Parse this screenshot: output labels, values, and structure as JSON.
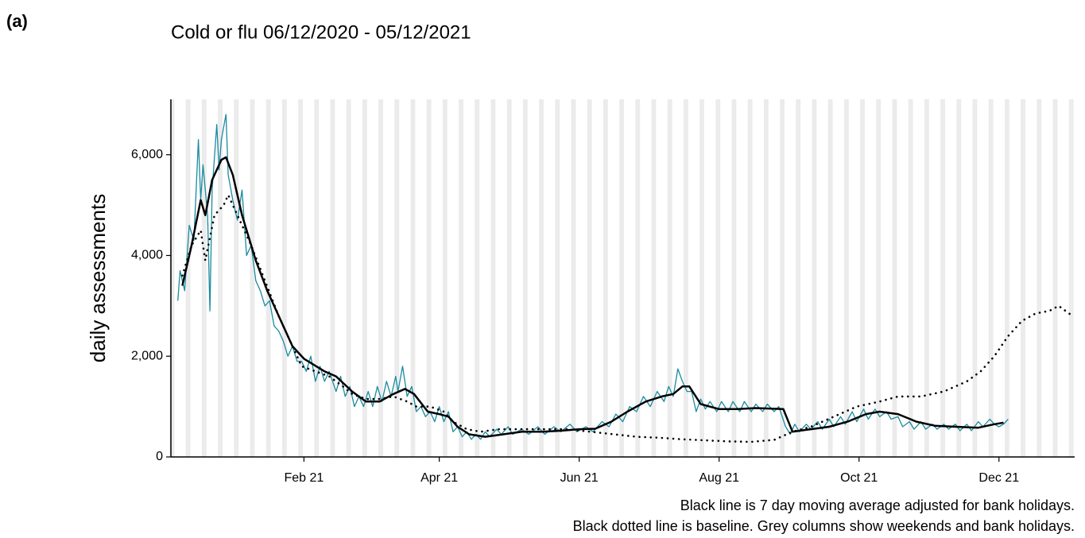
{
  "chart_data": {
    "type": "line",
    "panel_label": "(a)",
    "title": "Cold or flu 06/12/2020 - 05/12/2021",
    "y_label": "daily assessments",
    "notes": [
      "Black line is 7 day moving average adjusted for bank holidays.",
      "Black dotted line is baseline. Grey columns show weekends and bank holidays."
    ],
    "xlim": [
      -27,
      367
    ],
    "xticks": [
      {
        "value": 31,
        "label": "Feb 21"
      },
      {
        "value": 90,
        "label": "Apr 21"
      },
      {
        "value": 151,
        "label": "Jun 21"
      },
      {
        "value": 212,
        "label": "Aug 21"
      },
      {
        "value": 273,
        "label": "Oct 21"
      },
      {
        "value": 334,
        "label": "Dec 21"
      }
    ],
    "ylim": [
      0,
      7100
    ],
    "yticks": [
      0,
      {
        "value": 2000,
        "label": "2,000"
      },
      {
        "value": 4000,
        "label": "4,000"
      },
      {
        "value": 6000,
        "label": "6,000"
      }
    ],
    "weekend_columns": true,
    "series": [
      {
        "color": "#1b8ba0",
        "style": "solid",
        "width": 1.3,
        "x": [
          -24,
          -23,
          -21,
          -19,
          -17,
          -15,
          -14,
          -13,
          -11,
          -10,
          -9,
          -7,
          -6,
          -5,
          -3,
          -2,
          0,
          2,
          4,
          6,
          8,
          10,
          12,
          14,
          16,
          18,
          20,
          22,
          24,
          26,
          28,
          30,
          32,
          34,
          36,
          38,
          40,
          42,
          45,
          47,
          49,
          51,
          53,
          55,
          57,
          59,
          61,
          63,
          65,
          67,
          69,
          71,
          72,
          74,
          76,
          78,
          80,
          82,
          84,
          86,
          88,
          90,
          92,
          94,
          96,
          98,
          100,
          102,
          104,
          106,
          108,
          110,
          112,
          115,
          117,
          120,
          122,
          126,
          129,
          133,
          136,
          140,
          143,
          147,
          150,
          154,
          157,
          161,
          164,
          167,
          170,
          173,
          176,
          179,
          182,
          185,
          188,
          190,
          192,
          194,
          196,
          198,
          200,
          202,
          204,
          206,
          208,
          211,
          213,
          216,
          218,
          221,
          223,
          226,
          228,
          231,
          233,
          236,
          238,
          241,
          243,
          245,
          247,
          250,
          252,
          255,
          257,
          260,
          262,
          265,
          267,
          270,
          272,
          275,
          277,
          280,
          282,
          285,
          287,
          290,
          292,
          295,
          297,
          300,
          302,
          305,
          307,
          310,
          312,
          315,
          317,
          320,
          322,
          325,
          327,
          330,
          332,
          334,
          336,
          338
        ],
        "values": [
          3100,
          3700,
          3300,
          4600,
          4300,
          6300,
          5100,
          5800,
          4800,
          2900,
          5300,
          6600,
          5700,
          6300,
          6800,
          5600,
          5100,
          4700,
          5300,
          4000,
          4200,
          3500,
          3300,
          3000,
          3100,
          2600,
          2500,
          2300,
          2000,
          2200,
          1900,
          1900,
          1700,
          2000,
          1500,
          1800,
          1500,
          1700,
          1300,
          1600,
          1200,
          1400,
          1000,
          1200,
          1000,
          1300,
          1000,
          1400,
          1100,
          1500,
          1200,
          1600,
          1300,
          1800,
          1200,
          1400,
          900,
          1000,
          800,
          900,
          700,
          1000,
          700,
          900,
          500,
          600,
          400,
          500,
          350,
          450,
          350,
          500,
          400,
          550,
          450,
          600,
          450,
          550,
          450,
          600,
          450,
          600,
          500,
          650,
          500,
          600,
          500,
          700,
          600,
          850,
          700,
          1000,
          900,
          1200,
          1000,
          1300,
          1100,
          1400,
          1200,
          1750,
          1500,
          1300,
          1300,
          900,
          1150,
          950,
          1100,
          900,
          1100,
          900,
          1100,
          900,
          1100,
          900,
          1050,
          900,
          1050,
          900,
          1000,
          600,
          450,
          650,
          500,
          650,
          550,
          700,
          550,
          750,
          600,
          800,
          650,
          900,
          700,
          950,
          750,
          950,
          800,
          900,
          750,
          800,
          600,
          700,
          550,
          700,
          550,
          650,
          550,
          650,
          550,
          650,
          520,
          650,
          520,
          700,
          600,
          750,
          650,
          600,
          650,
          750
        ]
      },
      {
        "color": "#000000",
        "style": "solid",
        "width": 2.5,
        "x": [
          -22,
          -18,
          -14,
          -12,
          -9,
          -5,
          -3,
          0,
          4,
          10,
          15,
          21,
          26,
          31,
          40,
          45,
          52,
          58,
          64,
          70,
          75,
          79,
          85,
          90,
          94,
          98,
          103,
          110,
          118,
          126,
          135,
          143,
          151,
          158,
          165,
          172,
          180,
          187,
          192,
          196,
          199,
          204,
          212,
          220,
          228,
          235,
          240,
          244,
          252,
          260,
          268,
          276,
          282,
          290,
          298,
          306,
          315,
          325,
          332,
          336
        ],
        "values": [
          3400,
          4200,
          5100,
          4800,
          5500,
          5900,
          5950,
          5600,
          4800,
          3900,
          3300,
          2700,
          2200,
          1950,
          1700,
          1600,
          1300,
          1100,
          1100,
          1250,
          1350,
          1250,
          900,
          850,
          800,
          600,
          450,
          400,
          450,
          500,
          500,
          520,
          550,
          560,
          700,
          900,
          1100,
          1200,
          1250,
          1400,
          1400,
          1050,
          950,
          950,
          970,
          960,
          950,
          500,
          550,
          600,
          700,
          850,
          900,
          850,
          700,
          620,
          600,
          580,
          650,
          680
        ]
      },
      {
        "color": "#000000",
        "style": "dotted",
        "width": 2.6,
        "x": [
          -22,
          -18,
          -14,
          -12,
          -8,
          -4,
          -2,
          0,
          4,
          8,
          14,
          20,
          26,
          30,
          36,
          42,
          48,
          52,
          58,
          64,
          70,
          76,
          80,
          86,
          92,
          96,
          102,
          108,
          116,
          126,
          136,
          146,
          156,
          166,
          176,
          186,
          196,
          206,
          216,
          226,
          236,
          244,
          252,
          262,
          272,
          282,
          290,
          300,
          310,
          320,
          326,
          332,
          338,
          344,
          350,
          356,
          360,
          363,
          366
        ],
        "values": [
          3600,
          4200,
          4500,
          3900,
          4800,
          5000,
          5200,
          5000,
          4600,
          4200,
          3500,
          2800,
          2200,
          1800,
          1700,
          1600,
          1400,
          1250,
          1150,
          1150,
          1200,
          1100,
          1000,
          1000,
          900,
          700,
          550,
          500,
          550,
          550,
          550,
          550,
          500,
          450,
          400,
          380,
          350,
          330,
          310,
          300,
          340,
          500,
          600,
          800,
          1000,
          1100,
          1200,
          1200,
          1300,
          1500,
          1700,
          2000,
          2400,
          2700,
          2850,
          2900,
          3000,
          2900,
          2800
        ]
      }
    ]
  }
}
